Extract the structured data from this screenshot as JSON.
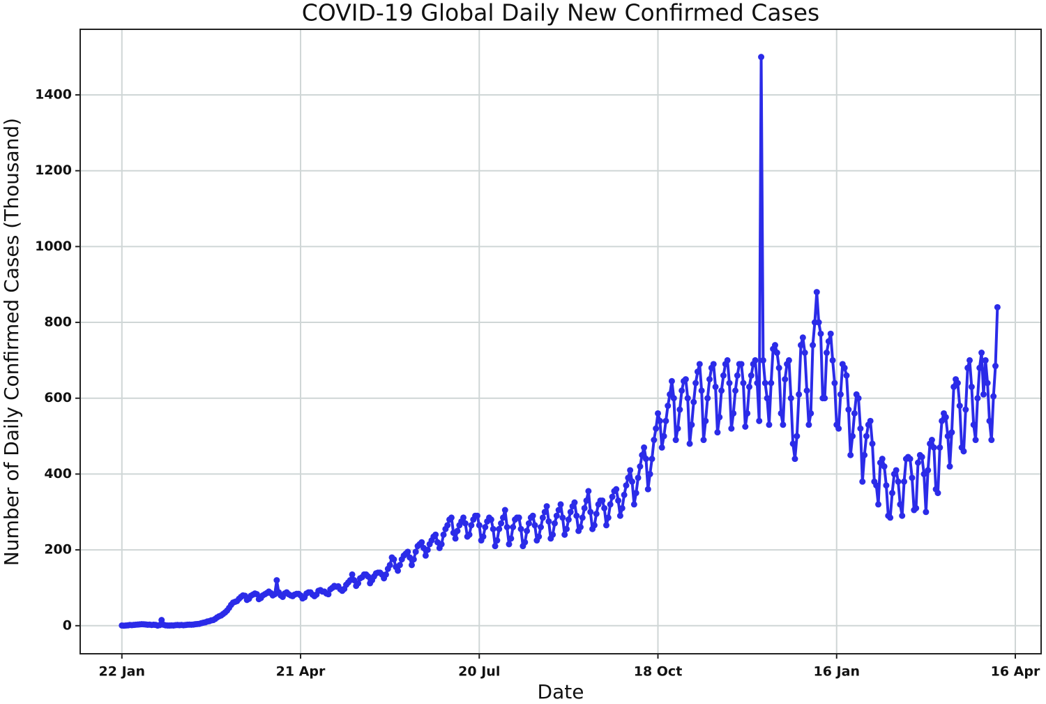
{
  "chart_data": {
    "type": "line",
    "title": "COVID-19 Global Daily New Confirmed Cases",
    "xlabel": "Date",
    "ylabel": "Number of Daily Confirmed Cases (Thousand)",
    "xlim": [
      -21,
      463
    ],
    "ylim": [
      -74,
      1573
    ],
    "xticks": [
      {
        "value": 0,
        "label": "22 Jan"
      },
      {
        "value": 90,
        "label": "21 Apr"
      },
      {
        "value": 180,
        "label": "20 Jul"
      },
      {
        "value": 270,
        "label": "18 Oct"
      },
      {
        "value": 360,
        "label": "16 Jan"
      },
      {
        "value": 450,
        "label": "16 Apr"
      }
    ],
    "yticks": [
      0,
      200,
      400,
      600,
      800,
      1000,
      1200,
      1400
    ],
    "grid": true,
    "x": [
      0,
      1,
      2,
      3,
      4,
      5,
      6,
      7,
      8,
      9,
      10,
      11,
      12,
      13,
      14,
      15,
      16,
      17,
      18,
      19,
      20,
      21,
      22,
      23,
      24,
      25,
      26,
      27,
      28,
      29,
      30,
      31,
      32,
      33,
      34,
      35,
      36,
      37,
      38,
      39,
      40,
      41,
      42,
      43,
      44,
      45,
      46,
      47,
      48,
      49,
      50,
      51,
      52,
      53,
      54,
      55,
      56,
      57,
      58,
      59,
      60,
      61,
      62,
      63,
      64,
      65,
      66,
      67,
      68,
      69,
      70,
      71,
      72,
      73,
      74,
      75,
      76,
      77,
      78,
      79,
      80,
      81,
      82,
      83,
      84,
      85,
      86,
      87,
      88,
      89,
      90,
      91,
      92,
      93,
      94,
      95,
      96,
      97,
      98,
      99,
      100,
      101,
      102,
      103,
      104,
      105,
      106,
      107,
      108,
      109,
      110,
      111,
      112,
      113,
      114,
      115,
      116,
      117,
      118,
      119,
      120,
      121,
      122,
      123,
      124,
      125,
      126,
      127,
      128,
      129,
      130,
      131,
      132,
      133,
      134,
      135,
      136,
      137,
      138,
      139,
      140,
      141,
      142,
      143,
      144,
      145,
      146,
      147,
      148,
      149,
      150,
      151,
      152,
      153,
      154,
      155,
      156,
      157,
      158,
      159,
      160,
      161,
      162,
      163,
      164,
      165,
      166,
      167,
      168,
      169,
      170,
      171,
      172,
      173,
      174,
      175,
      176,
      177,
      178,
      179,
      180,
      181,
      182,
      183,
      184,
      185,
      186,
      187,
      188,
      189,
      190,
      191,
      192,
      193,
      194,
      195,
      196,
      197,
      198,
      199,
      200,
      201,
      202,
      203,
      204,
      205,
      206,
      207,
      208,
      209,
      210,
      211,
      212,
      213,
      214,
      215,
      216,
      217,
      218,
      219,
      220,
      221,
      222,
      223,
      224,
      225,
      226,
      227,
      228,
      229,
      230,
      231,
      232,
      233,
      234,
      235,
      236,
      237,
      238,
      239,
      240,
      241,
      242,
      243,
      244,
      245,
      246,
      247,
      248,
      249,
      250,
      251,
      252,
      253,
      254,
      255,
      256,
      257,
      258,
      259,
      260,
      261,
      262,
      263,
      264,
      265,
      266,
      267,
      268,
      269,
      270,
      271,
      272,
      273,
      274,
      275,
      276,
      277,
      278,
      279,
      280,
      281,
      282,
      283,
      284,
      285,
      286,
      287,
      288,
      289,
      290,
      291,
      292,
      293,
      294,
      295,
      296,
      297,
      298,
      299,
      300,
      301,
      302,
      303,
      304,
      305,
      306,
      307,
      308,
      309,
      310,
      311,
      312,
      313,
      314,
      315,
      316,
      317,
      318,
      319,
      320,
      321,
      322,
      323,
      324,
      325,
      326,
      327,
      328,
      329,
      330,
      331,
      332,
      333,
      334,
      335,
      336,
      337,
      338,
      339,
      340,
      341,
      342,
      343,
      344,
      345,
      346,
      347,
      348,
      349,
      350,
      351,
      352,
      353,
      354,
      355,
      356,
      357,
      358,
      359,
      360,
      361,
      362,
      363,
      364,
      365,
      366,
      367,
      368,
      369,
      370,
      371,
      372,
      373,
      374,
      375,
      376,
      377,
      378,
      379,
      380,
      381,
      382,
      383,
      384,
      385,
      386,
      387,
      388,
      389,
      390,
      391,
      392,
      393,
      394,
      395,
      396,
      397,
      398,
      399,
      400,
      401,
      402,
      403,
      404,
      405,
      406,
      407,
      408,
      409,
      410,
      411,
      412,
      413,
      414,
      415,
      416,
      417,
      418,
      419,
      420,
      421,
      422,
      423,
      424,
      425,
      426,
      427,
      428,
      429,
      430,
      431,
      432,
      433,
      434,
      435,
      436,
      437,
      438,
      439,
      440,
      441
    ],
    "series": [
      {
        "color": "#2b2be8",
        "values": [
          0.6,
          0.1,
          0.6,
          0.9,
          2,
          1.5,
          2.1,
          2.6,
          3,
          3.6,
          3.9,
          3.8,
          3.2,
          2.5,
          2.8,
          2,
          2.5,
          2.1,
          0.4,
          1.6,
          15,
          2.5,
          1,
          0.6,
          0.5,
          0.8,
          0.6,
          1.5,
          1.8,
          1.4,
          2,
          1.3,
          1.8,
          2.5,
          2.8,
          2.7,
          3,
          3.9,
          4.5,
          5,
          6.5,
          8,
          9,
          11,
          12,
          14,
          15,
          18,
          22,
          25,
          27,
          31,
          35,
          40,
          47,
          55,
          61,
          63,
          65,
          71,
          76,
          80,
          79,
          68,
          71,
          79,
          82,
          85,
          83,
          70,
          73,
          80,
          83,
          86,
          90,
          86,
          80,
          83,
          120,
          88,
          80,
          76,
          85,
          88,
          83,
          80,
          78,
          82,
          84,
          84,
          80,
          72,
          75,
          85,
          88,
          88,
          82,
          78,
          82,
          92,
          94,
          90,
          90,
          85,
          83,
          96,
          100,
          105,
          103,
          104,
          96,
          92,
          97,
          108,
          114,
          120,
          135,
          120,
          105,
          112,
          125,
          128,
          135,
          135,
          130,
          112,
          120,
          130,
          138,
          140,
          140,
          135,
          125,
          135,
          150,
          160,
          180,
          175,
          155,
          145,
          160,
          175,
          185,
          190,
          195,
          180,
          160,
          175,
          195,
          210,
          215,
          220,
          205,
          185,
          200,
          215,
          225,
          235,
          240,
          220,
          205,
          215,
          240,
          255,
          265,
          280,
          285,
          245,
          230,
          250,
          265,
          275,
          285,
          270,
          235,
          240,
          265,
          280,
          290,
          290,
          265,
          225,
          235,
          260,
          275,
          285,
          280,
          255,
          210,
          225,
          255,
          270,
          285,
          305,
          260,
          215,
          230,
          260,
          280,
          285,
          285,
          255,
          210,
          220,
          250,
          270,
          285,
          290,
          265,
          225,
          235,
          260,
          285,
          300,
          315,
          275,
          230,
          240,
          270,
          290,
          305,
          320,
          285,
          240,
          255,
          280,
          300,
          315,
          325,
          290,
          250,
          260,
          285,
          310,
          330,
          355,
          300,
          255,
          265,
          295,
          320,
          330,
          330,
          310,
          265,
          285,
          320,
          340,
          355,
          360,
          330,
          290,
          310,
          345,
          370,
          390,
          410,
          380,
          320,
          350,
          390,
          420,
          450,
          470,
          440,
          360,
          400,
          440,
          490,
          520,
          560,
          540,
          470,
          500,
          540,
          580,
          610,
          645,
          600,
          490,
          520,
          570,
          620,
          645,
          650,
          600,
          480,
          530,
          590,
          640,
          670,
          690,
          620,
          490,
          540,
          600,
          650,
          680,
          690,
          630,
          510,
          550,
          620,
          660,
          690,
          700,
          640,
          520,
          560,
          620,
          660,
          690,
          690,
          640,
          525,
          560,
          630,
          660,
          690,
          700,
          640,
          540,
          1500,
          700,
          640,
          600,
          530,
          640,
          730,
          740,
          720,
          680,
          560,
          530,
          650,
          690,
          700,
          600,
          480,
          440,
          500,
          610,
          740,
          760,
          720,
          620,
          530,
          560,
          740,
          800,
          880,
          800,
          770,
          600,
          600,
          720,
          750,
          770,
          700,
          640,
          530,
          520,
          610,
          690,
          680,
          660,
          570,
          450,
          500,
          560,
          610,
          600,
          520,
          380,
          450,
          500,
          530,
          540,
          480,
          380,
          370,
          320,
          430,
          440,
          420,
          370,
          290,
          285,
          350,
          400,
          410,
          380,
          320,
          290,
          380,
          440,
          445,
          440,
          390,
          305,
          310,
          430,
          450,
          445,
          400,
          300,
          410,
          480,
          490,
          470,
          360,
          350,
          470,
          540,
          560,
          550,
          500,
          420,
          510,
          630,
          650,
          640,
          580,
          470,
          460,
          570,
          680,
          700,
          630,
          530,
          490,
          600,
          680,
          720,
          610,
          700,
          640,
          540,
          490,
          605,
          685,
          840
        ]
      }
    ]
  }
}
